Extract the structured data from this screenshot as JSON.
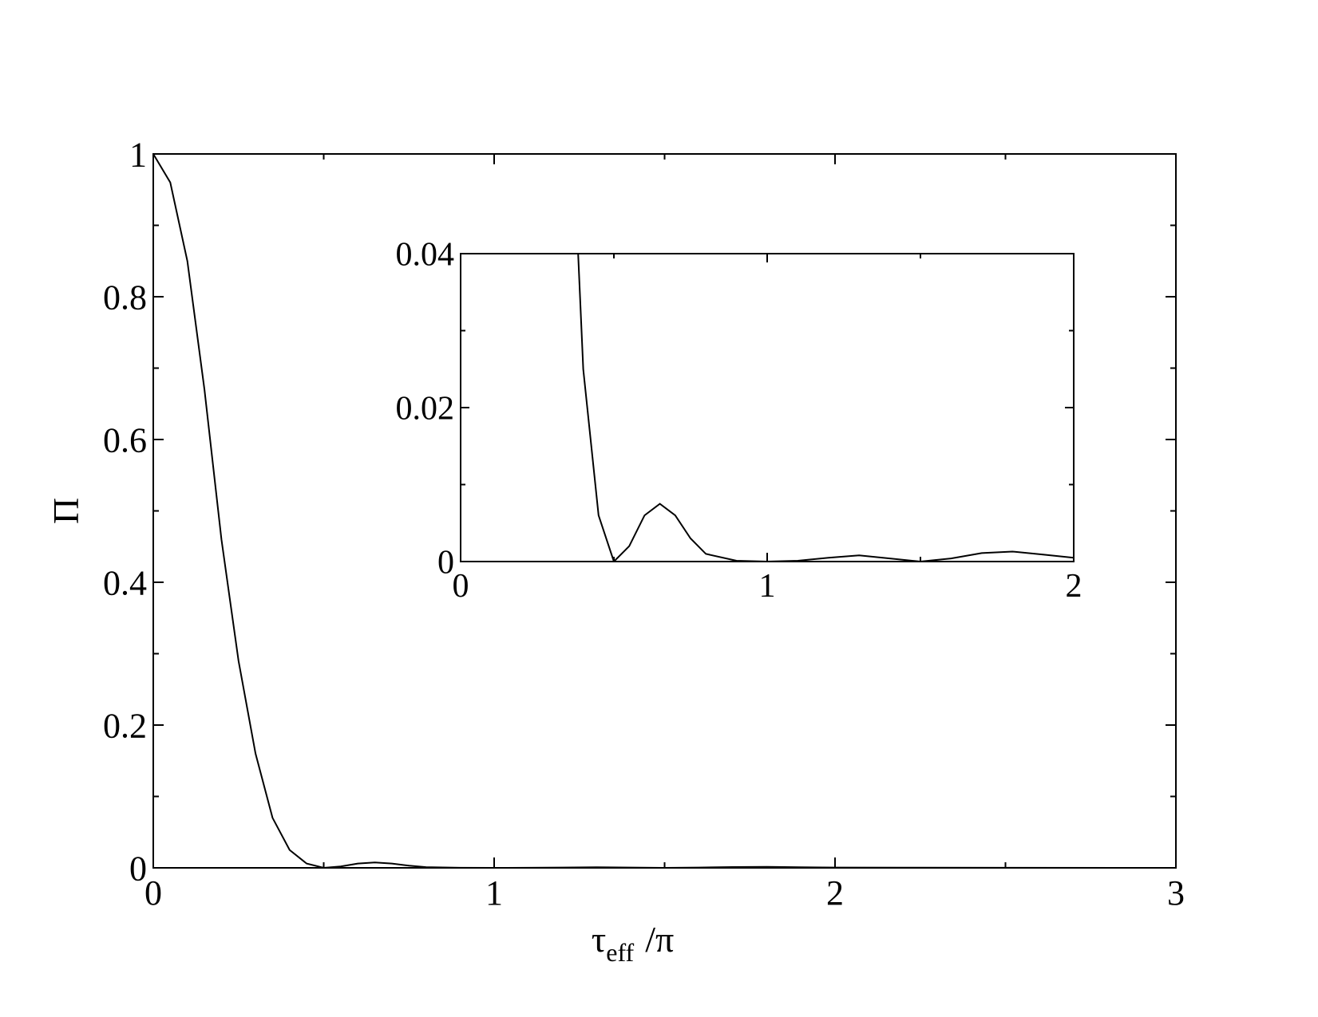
{
  "chart_data": [
    {
      "type": "line",
      "ylabel": "Π",
      "xlabel": "τ",
      "xlabel_sub": "eff",
      "xlabel_rest": "/π",
      "x": [
        0,
        0.05,
        0.1,
        0.15,
        0.2,
        0.25,
        0.3,
        0.35,
        0.4,
        0.45,
        0.5,
        0.55,
        0.6,
        0.65,
        0.7,
        0.75,
        0.8,
        0.9,
        1,
        1.1,
        1.2,
        1.3,
        1.4,
        1.5,
        1.6,
        1.7,
        1.8,
        1.9,
        2,
        2.2,
        2.5,
        3
      ],
      "series": [
        {
          "color": "#000000",
          "values": [
            1,
            0.96,
            0.85,
            0.67,
            0.46,
            0.29,
            0.16,
            0.07,
            0.025,
            0.006,
            0,
            0.002,
            0.006,
            0.0075,
            0.006,
            0.003,
            0.001,
            0.0001,
            0,
            0.0001,
            0.0005,
            0.0008,
            0.0004,
            0,
            0.0004,
            0.0011,
            0.0013,
            0.0009,
            0.0005,
            0.0002,
            0.0001,
            0
          ]
        }
      ],
      "xlim": [
        0,
        3
      ],
      "xticks": [
        0,
        1,
        2,
        3
      ],
      "xminor_ticks": [
        0.5,
        1.5,
        2.5
      ],
      "ylim": [
        0,
        1
      ],
      "yticks": [
        0,
        0.2,
        0.4,
        0.6,
        0.8,
        1
      ],
      "yminor_ticks": [
        0.1,
        0.3,
        0.5,
        0.7,
        0.9
      ]
    },
    {
      "type": "line",
      "x": [
        0.35,
        0.4,
        0.45,
        0.5,
        0.55,
        0.6,
        0.65,
        0.7,
        0.75,
        0.8,
        0.9,
        1,
        1.1,
        1.2,
        1.3,
        1.4,
        1.5,
        1.6,
        1.7,
        1.8,
        1.9,
        2
      ],
      "series": [
        {
          "color": "#000000",
          "values": [
            0.07,
            0.025,
            0.006,
            0,
            0.002,
            0.006,
            0.0075,
            0.006,
            0.003,
            0.001,
            0.0001,
            0,
            0.0001,
            0.0005,
            0.0008,
            0.0004,
            0,
            0.0004,
            0.0011,
            0.0013,
            0.0009,
            0.0005
          ]
        }
      ],
      "xlim": [
        0,
        2
      ],
      "xticks": [
        0,
        1,
        2
      ],
      "xminor_ticks": [
        0.5,
        1.5
      ],
      "ylim": [
        0,
        0.04
      ],
      "yticks": [
        0,
        0.02,
        0.04
      ],
      "yminor_ticks": [
        0.01,
        0.03
      ]
    }
  ]
}
